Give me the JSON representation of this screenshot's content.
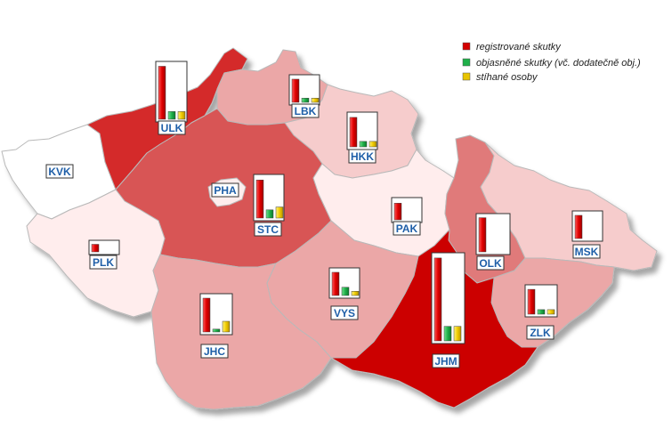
{
  "legend": [
    {
      "label": "registrované skutky",
      "color": "#d40000"
    },
    {
      "label": "objasněné skutky (vč. dodatečně obj.)",
      "color": "#1fb04a"
    },
    {
      "label": "stíhané osoby",
      "color": "#e8c400"
    }
  ],
  "colors": {
    "level_1": "#ffeded",
    "level_2": "#f6cccc",
    "level_3": "#eba7a7",
    "level_4": "#e07a7a",
    "level_5": "#d85555",
    "level_6": "#d42a2a",
    "level_7": "#cc0000",
    "empty": "#ffffff",
    "label_text": "#1f5fa8"
  },
  "regions": [
    {
      "code": "PHA",
      "level": "level_1",
      "bars": []
    },
    {
      "code": "STC",
      "level": "level_5",
      "bars": [
        0.93,
        0.2,
        0.27
      ]
    },
    {
      "code": "JHC",
      "level": "level_3",
      "bars": [
        0.95,
        0.08,
        0.3
      ]
    },
    {
      "code": "PLK",
      "level": "level_1",
      "bars": [
        0.85
      ]
    },
    {
      "code": "KVK",
      "level": "empty",
      "bars": []
    },
    {
      "code": "ULK",
      "level": "level_6",
      "bars": [
        0.96,
        0.14,
        0.14
      ]
    },
    {
      "code": "LBK",
      "level": "level_3",
      "bars": [
        0.93,
        0.17,
        0.17
      ]
    },
    {
      "code": "HKK",
      "level": "level_2",
      "bars": [
        0.92,
        0.17,
        0.17
      ]
    },
    {
      "code": "PAK",
      "level": "level_1",
      "bars": [
        0.85
      ]
    },
    {
      "code": "VYS",
      "level": "level_3",
      "bars": [
        0.93,
        0.33,
        0.17
      ]
    },
    {
      "code": "JHM",
      "level": "level_7",
      "bars": [
        0.97,
        0.17,
        0.17
      ]
    },
    {
      "code": "OLK",
      "level": "level_4",
      "bars": [
        0.96
      ]
    },
    {
      "code": "ZLK",
      "level": "level_3",
      "bars": [
        0.93,
        0.17,
        0.17
      ]
    },
    {
      "code": "MSK",
      "level": "level_2",
      "bars": [
        0.93
      ]
    }
  ]
}
